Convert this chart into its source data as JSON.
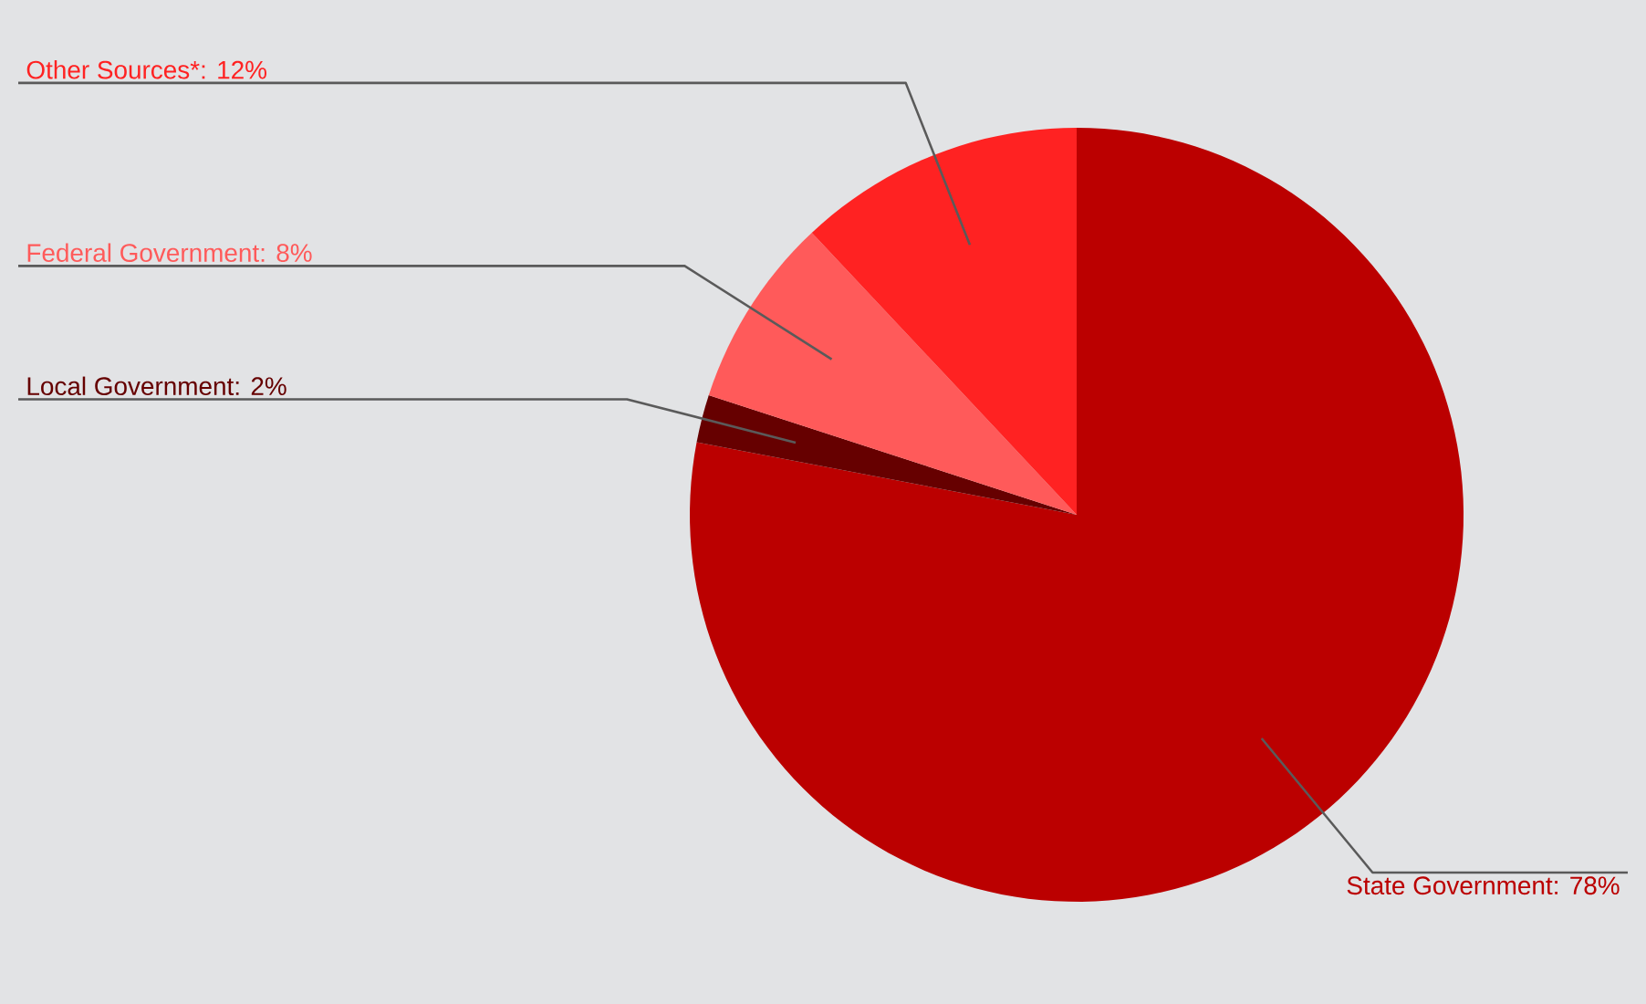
{
  "chart_data": {
    "type": "pie",
    "categories": [
      "State Government: 78%",
      "Local Government: 2%",
      "Federal Government: 8%",
      "Other Sources*: 12%"
    ],
    "values": [
      78,
      2,
      8,
      12
    ],
    "colors": [
      "#bb0000",
      "#660000",
      "#ff5a5a",
      "#ff2222"
    ]
  }
}
